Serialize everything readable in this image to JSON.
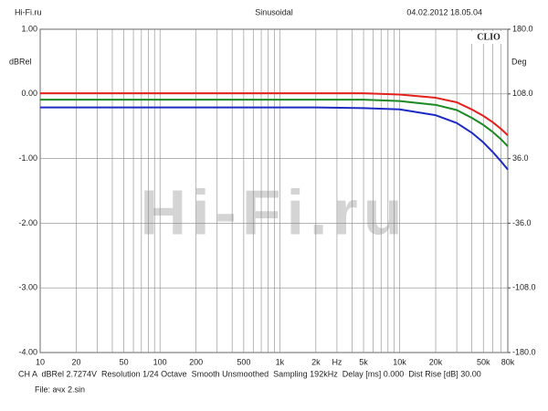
{
  "header": {
    "site": "Hi-Fi.ru",
    "mode": "Sinusoidal",
    "timestamp": "04.02.2012 18.05.04"
  },
  "chart_data": {
    "type": "line",
    "brand": "CLIO",
    "y_label": "dBRel",
    "y2_label": "Deg",
    "log_x": true,
    "grid": true,
    "xlim": [
      10,
      80000
    ],
    "xticks": [
      10,
      20,
      50,
      100,
      200,
      500,
      {
        "value": 1000,
        "label": "1k"
      },
      {
        "value": 2000,
        "label": "2k"
      },
      {
        "value": 3000,
        "label": "Hz"
      },
      {
        "value": 5000,
        "label": "5k"
      },
      {
        "value": 10000,
        "label": "10k"
      },
      {
        "value": 20000,
        "label": "20k"
      },
      {
        "value": 50000,
        "label": "50k"
      },
      {
        "value": 80000,
        "label": "80k"
      }
    ],
    "xminor": [
      30,
      40,
      60,
      70,
      80,
      90,
      300,
      400,
      600,
      700,
      800,
      900,
      4000,
      6000,
      7000,
      8000,
      9000,
      30000,
      40000,
      60000,
      70000
    ],
    "ylim": [
      -4,
      1
    ],
    "yticks": [
      {
        "value": 1,
        "label": "1.00"
      },
      {
        "value": 0,
        "label": "0.00"
      },
      {
        "value": -1,
        "label": "-1.00"
      },
      {
        "value": -2,
        "label": "-2.00"
      },
      {
        "value": -3,
        "label": "-3.00"
      },
      {
        "value": -4,
        "label": "-4.00"
      }
    ],
    "y2lim": [
      -180,
      180
    ],
    "y2ticks": [
      {
        "value": 180,
        "label": "180.0"
      },
      {
        "value": 108,
        "label": "108.0"
      },
      {
        "value": 36,
        "label": "36.0"
      },
      {
        "value": -36,
        "label": "-36.0"
      },
      {
        "value": -108,
        "label": "-108.0"
      },
      {
        "value": -180,
        "label": "-180.0"
      }
    ],
    "x": [
      10,
      20,
      50,
      100,
      200,
      500,
      1000,
      2000,
      5000,
      10000,
      20000,
      30000,
      40000,
      50000,
      60000,
      70000,
      80000
    ],
    "series": [
      {
        "color": "#e3201b",
        "values": [
          0.01,
          0.01,
          0.01,
          0.01,
          0.01,
          0.01,
          0.01,
          0.01,
          0.01,
          -0.01,
          -0.06,
          -0.13,
          -0.24,
          -0.34,
          -0.44,
          -0.54,
          -0.64
        ]
      },
      {
        "color": "#1c8a24",
        "values": [
          -0.09,
          -0.09,
          -0.09,
          -0.09,
          -0.09,
          -0.09,
          -0.09,
          -0.09,
          -0.09,
          -0.11,
          -0.17,
          -0.25,
          -0.37,
          -0.48,
          -0.59,
          -0.7,
          -0.81
        ]
      },
      {
        "color": "#1d2bc4",
        "values": [
          -0.21,
          -0.21,
          -0.21,
          -0.21,
          -0.21,
          -0.21,
          -0.21,
          -0.21,
          -0.22,
          -0.24,
          -0.33,
          -0.45,
          -0.6,
          -0.75,
          -0.9,
          -1.04,
          -1.17
        ]
      }
    ]
  },
  "footer": {
    "settings": "CH A  dBRel 2.7274V  Resolution 1/24 Octave  Smooth Unsmoothed  Sampling 192kHz  Delay [ms] 0.000  Dist Rise [dB] 30.00",
    "file": "File: ачх 2.sin"
  }
}
